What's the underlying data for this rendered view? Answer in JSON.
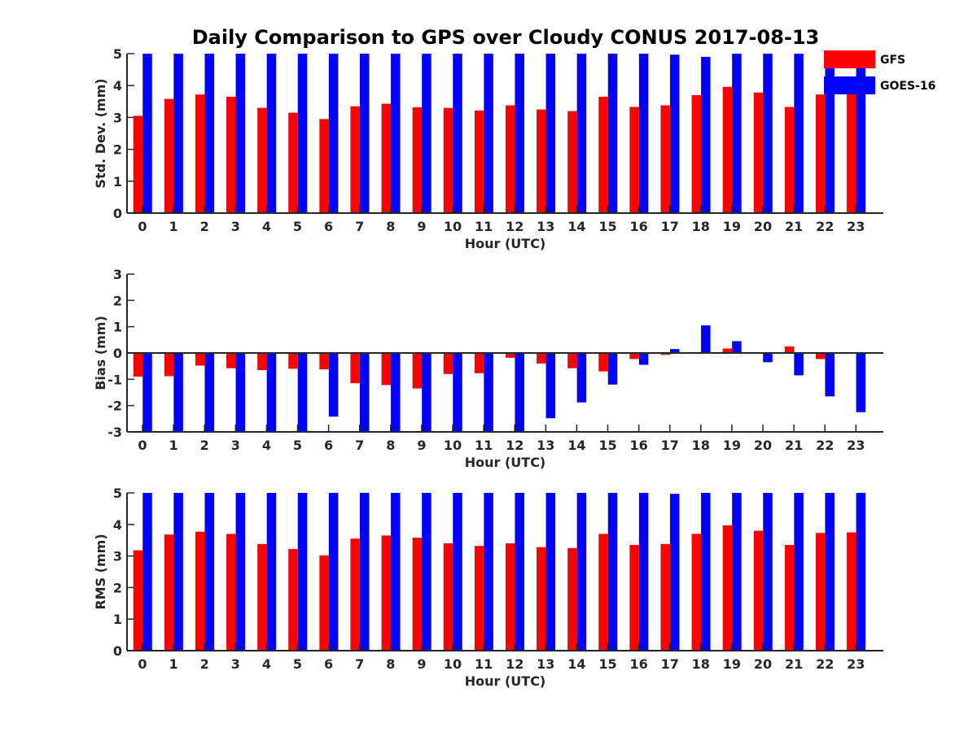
{
  "title": "Daily Comparison to GPS over Cloudy CONUS 2017-08-13",
  "legend": [
    {
      "name": "GFS",
      "color": "#ff0000"
    },
    {
      "name": "GOES-16",
      "color": "#0000ff"
    }
  ],
  "chart_data": [
    {
      "type": "bar",
      "xlabel": "Hour (UTC)",
      "ylabel": "Std. Dev. (mm)",
      "ylim": [
        0,
        5
      ],
      "yticks": [
        0,
        1,
        2,
        3,
        4,
        5
      ],
      "categories": [
        "0",
        "1",
        "2",
        "3",
        "4",
        "5",
        "6",
        "7",
        "8",
        "9",
        "10",
        "11",
        "12",
        "13",
        "14",
        "15",
        "16",
        "17",
        "18",
        "19",
        "20",
        "21",
        "22",
        "23"
      ],
      "series": [
        {
          "name": "GFS",
          "color": "#ff0000",
          "values": [
            3.05,
            3.58,
            3.72,
            3.65,
            3.3,
            3.15,
            2.95,
            3.35,
            3.43,
            3.32,
            3.3,
            3.22,
            3.38,
            3.25,
            3.2,
            3.65,
            3.33,
            3.38,
            3.7,
            3.96,
            3.78,
            3.33,
            3.72,
            3.75
          ]
        },
        {
          "name": "GOES-16",
          "color": "#0000ff",
          "values": [
            5,
            5,
            5,
            5,
            5,
            5,
            5,
            5,
            5,
            5,
            5,
            5,
            5,
            5,
            5,
            5,
            5,
            4.97,
            4.9,
            5,
            5,
            5,
            5,
            5
          ]
        }
      ],
      "legend_position": "top-right"
    },
    {
      "type": "bar",
      "xlabel": "Hour (UTC)",
      "ylabel": "Bias (mm)",
      "ylim": [
        -3,
        3
      ],
      "yticks": [
        -3,
        -2,
        -1,
        0,
        1,
        2,
        3
      ],
      "categories": [
        "0",
        "1",
        "2",
        "3",
        "4",
        "5",
        "6",
        "7",
        "8",
        "9",
        "10",
        "11",
        "12",
        "13",
        "14",
        "15",
        "16",
        "17",
        "18",
        "19",
        "20",
        "21",
        "22",
        "23"
      ],
      "series": [
        {
          "name": "GFS",
          "color": "#ff0000",
          "values": [
            -0.9,
            -0.88,
            -0.48,
            -0.58,
            -0.65,
            -0.6,
            -0.62,
            -1.15,
            -1.22,
            -1.35,
            -0.8,
            -0.77,
            -0.18,
            -0.4,
            -0.58,
            -0.7,
            -0.23,
            -0.07,
            0,
            0.17,
            -0.03,
            0.25,
            -0.23,
            0
          ]
        },
        {
          "name": "GOES-16",
          "color": "#0000ff",
          "values": [
            -3,
            -3,
            -3,
            -3,
            -3,
            -3,
            -2.42,
            -3,
            -3,
            -3,
            -3,
            -3,
            -3,
            -2.48,
            -1.88,
            -1.2,
            -0.45,
            0.15,
            1.05,
            0.45,
            -0.35,
            -0.85,
            -1.65,
            -2.25
          ]
        }
      ]
    },
    {
      "type": "bar",
      "xlabel": "Hour (UTC)",
      "ylabel": "RMS (mm)",
      "ylim": [
        0,
        5
      ],
      "yticks": [
        0,
        1,
        2,
        3,
        4,
        5
      ],
      "categories": [
        "0",
        "1",
        "2",
        "3",
        "4",
        "5",
        "6",
        "7",
        "8",
        "9",
        "10",
        "11",
        "12",
        "13",
        "14",
        "15",
        "16",
        "17",
        "18",
        "19",
        "20",
        "21",
        "22",
        "23"
      ],
      "series": [
        {
          "name": "GFS",
          "color": "#ff0000",
          "values": [
            3.18,
            3.68,
            3.77,
            3.7,
            3.38,
            3.22,
            3.02,
            3.55,
            3.65,
            3.58,
            3.4,
            3.32,
            3.4,
            3.28,
            3.25,
            3.7,
            3.35,
            3.38,
            3.7,
            3.97,
            3.8,
            3.35,
            3.73,
            3.75
          ]
        },
        {
          "name": "GOES-16",
          "color": "#0000ff",
          "values": [
            5,
            5,
            5,
            5,
            5,
            5,
            5,
            5,
            5,
            5,
            5,
            5,
            5,
            5,
            5,
            5,
            5,
            4.97,
            5,
            5,
            5,
            5,
            5,
            5
          ]
        }
      ]
    }
  ]
}
